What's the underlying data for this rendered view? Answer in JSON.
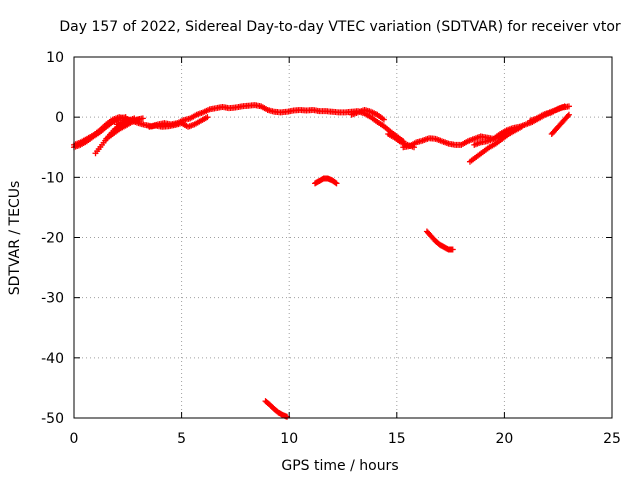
{
  "chart_data": {
    "type": "scatter",
    "title": "Day 157 of 2022, Sidereal Day-to-day VTEC variation (SDTVAR) for receiver vtor",
    "xlabel": "GPS time / hours",
    "ylabel": "SDTVAR / TECUs",
    "xlim": [
      0,
      25
    ],
    "ylim": [
      -50,
      10
    ],
    "xticks": [
      0,
      5,
      10,
      15,
      20,
      25
    ],
    "yticks": [
      -50,
      -40,
      -30,
      -20,
      -10,
      0,
      10
    ],
    "xtick_labels": [
      "0",
      "5",
      "10",
      "15",
      "20",
      "25"
    ],
    "ytick_labels": [
      "-50",
      "-40",
      "-30",
      "-20",
      "-10",
      "0",
      "10"
    ],
    "grid": true,
    "marker": "plus",
    "color": "#ff0000",
    "series": [
      {
        "name": "main-trace",
        "x": [
          0.0,
          0.3,
          0.6,
          0.9,
          1.2,
          1.5,
          1.8,
          2.1,
          2.4,
          2.7,
          3.0,
          3.3,
          3.6,
          3.9,
          4.2,
          4.5,
          4.8,
          5.1,
          5.4,
          5.7,
          6.0,
          6.3,
          6.6,
          6.9,
          7.2,
          7.5,
          7.8,
          8.1,
          8.4,
          8.7,
          9.0,
          9.3,
          9.6,
          9.9,
          10.2,
          10.5,
          10.8,
          11.1,
          11.4,
          11.7,
          12.0,
          12.3,
          12.6,
          12.9,
          13.2,
          13.5,
          13.8,
          14.1,
          14.4,
          14.7,
          15.0,
          15.3
        ],
        "y": [
          -4.6,
          -4.2,
          -3.6,
          -3.0,
          -2.2,
          -1.2,
          -0.4,
          0.0,
          -0.2,
          -0.6,
          -1.0,
          -1.3,
          -1.5,
          -1.2,
          -1.0,
          -1.2,
          -1.0,
          -0.5,
          -0.2,
          0.4,
          0.8,
          1.3,
          1.5,
          1.7,
          1.5,
          1.6,
          1.8,
          1.9,
          2.0,
          1.8,
          1.2,
          0.9,
          0.8,
          0.9,
          1.1,
          1.2,
          1.1,
          1.2,
          1.0,
          1.0,
          0.9,
          0.8,
          0.8,
          0.9,
          1.0,
          0.6,
          0.0,
          -0.8,
          -1.5,
          -2.4,
          -3.2,
          -4.0
        ]
      },
      {
        "name": "early-rise-a",
        "x": [
          0.0,
          0.3,
          0.6,
          0.9,
          1.2,
          1.5,
          1.8,
          2.1,
          2.4
        ],
        "y": [
          -5.0,
          -4.6,
          -4.0,
          -3.2,
          -2.5,
          -1.6,
          -0.8,
          -0.2,
          0.0
        ]
      },
      {
        "name": "early-rise-b",
        "x": [
          1.0,
          1.3,
          1.6,
          1.9,
          2.2,
          2.5,
          2.8
        ],
        "y": [
          -6.0,
          -4.6,
          -3.2,
          -2.0,
          -1.2,
          -0.6,
          -0.2
        ]
      },
      {
        "name": "early-rise-c",
        "x": [
          1.5,
          1.8,
          2.1,
          2.4,
          2.7,
          3.0
        ],
        "y": [
          -3.6,
          -2.8,
          -2.0,
          -1.4,
          -0.8,
          -0.4
        ]
      },
      {
        "name": "early-rise-d",
        "x": [
          2.0,
          2.3,
          2.6,
          2.9,
          3.2
        ],
        "y": [
          -1.2,
          -0.8,
          -0.6,
          -0.4,
          -0.2
        ]
      },
      {
        "name": "mid-morning",
        "x": [
          3.5,
          3.8,
          4.1,
          4.4,
          4.7,
          5.0,
          5.3,
          5.6,
          5.9,
          6.2
        ],
        "y": [
          -1.6,
          -1.4,
          -1.6,
          -1.5,
          -1.3,
          -1.0,
          -1.6,
          -1.2,
          -0.6,
          0.0
        ]
      },
      {
        "name": "late-afternoon",
        "x": [
          15.3,
          15.6,
          15.9,
          16.2,
          16.5,
          16.8,
          17.1,
          17.4,
          17.7,
          18.0,
          18.3,
          18.6,
          18.9,
          19.2,
          19.5,
          19.8,
          20.1,
          20.4,
          20.7,
          21.0,
          21.3,
          21.6,
          21.9,
          22.2,
          22.5,
          22.8
        ],
        "y": [
          -5.0,
          -4.8,
          -4.2,
          -3.9,
          -3.5,
          -3.6,
          -4.0,
          -4.4,
          -4.6,
          -4.6,
          -4.0,
          -3.6,
          -3.2,
          -3.4,
          -3.6,
          -2.8,
          -2.2,
          -1.8,
          -1.6,
          -1.2,
          -0.8,
          -0.2,
          0.4,
          0.8,
          1.4,
          1.8
        ]
      },
      {
        "name": "evening-branch-a",
        "x": [
          18.4,
          18.7,
          19.0,
          19.3,
          19.6,
          19.9,
          20.2,
          20.5,
          20.8
        ],
        "y": [
          -7.4,
          -6.6,
          -5.8,
          -5.0,
          -4.4,
          -3.6,
          -2.8,
          -2.2,
          -1.6
        ]
      },
      {
        "name": "evening-branch-b",
        "x": [
          18.6,
          18.9,
          19.2,
          19.5,
          19.8,
          20.1
        ],
        "y": [
          -4.6,
          -4.2,
          -4.0,
          -3.6,
          -3.2,
          -2.6
        ]
      },
      {
        "name": "evening-branch-c",
        "x": [
          21.2,
          21.5,
          21.8,
          22.1,
          22.4,
          22.7,
          23.0
        ],
        "y": [
          -0.6,
          -0.2,
          0.4,
          0.8,
          1.2,
          1.6,
          1.8
        ]
      },
      {
        "name": "late-drop",
        "x": [
          22.2,
          22.4,
          22.6,
          22.8,
          23.0
        ],
        "y": [
          -2.8,
          -2.0,
          -1.2,
          -0.4,
          0.4
        ]
      },
      {
        "name": "midday-dip-arc",
        "x": [
          11.2,
          11.4,
          11.6,
          11.8,
          12.0,
          12.2
        ],
        "y": [
          -11.0,
          -10.6,
          -10.2,
          -10.2,
          -10.5,
          -11.0
        ]
      },
      {
        "name": "afternoon-dip",
        "x": [
          16.4,
          16.6,
          16.8,
          17.0,
          17.2,
          17.4,
          17.6
        ],
        "y": [
          -19.0,
          -19.8,
          -20.6,
          -21.2,
          -21.6,
          -22.0,
          -22.0
        ]
      },
      {
        "name": "deep-dip",
        "x": [
          8.9,
          9.1,
          9.3,
          9.5,
          9.7,
          9.9
        ],
        "y": [
          -47.2,
          -47.8,
          -48.5,
          -49.1,
          -49.5,
          -49.8
        ]
      },
      {
        "name": "afternoon-lower-band",
        "x": [
          14.6,
          14.9,
          15.2,
          15.5,
          15.8
        ],
        "y": [
          -2.8,
          -3.4,
          -4.2,
          -4.6,
          -5.0
        ]
      },
      {
        "name": "noon-upper-band",
        "x": [
          12.9,
          13.2,
          13.5,
          13.8,
          14.1,
          14.4
        ],
        "y": [
          0.4,
          0.8,
          1.2,
          0.9,
          0.4,
          -0.4
        ]
      }
    ]
  }
}
